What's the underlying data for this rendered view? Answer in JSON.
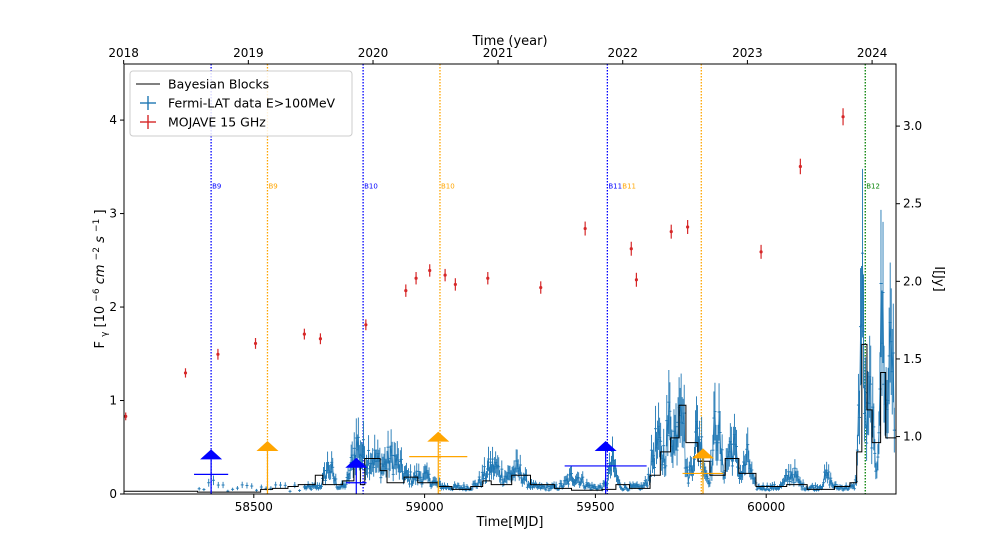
{
  "chart_data": {
    "type": "scatter",
    "title": "",
    "top_axis_label": "Time (year)",
    "xlabel": "Time[MJD]",
    "ylabel_left_parts": [
      "F",
      "γ",
      "[10",
      "−6",
      "cm",
      "−2",
      "s",
      "−1",
      "]"
    ],
    "ylabel_right": "I[Jy]",
    "xlim": [
      58120,
      60380
    ],
    "ylim_left": [
      0,
      4.6
    ],
    "ylim_right": [
      0.63,
      3.4
    ],
    "x_ticks": [
      58500,
      59000,
      59500,
      60000
    ],
    "x_tick_labels": [
      "58500",
      "59000",
      "59500",
      "60000"
    ],
    "y_left_ticks": [
      0,
      1,
      2,
      3,
      4
    ],
    "y_left_tick_labels": [
      "0",
      "1",
      "2",
      "3",
      "4"
    ],
    "y_right_ticks": [
      1.0,
      1.5,
      2.0,
      2.5,
      3.0
    ],
    "y_right_tick_labels": [
      "1.0",
      "1.5",
      "2.0",
      "2.5",
      "3.0"
    ],
    "year_ticks": [
      {
        "mjd": 58119,
        "label": "2018"
      },
      {
        "mjd": 58484,
        "label": "2019"
      },
      {
        "mjd": 58849,
        "label": "2020"
      },
      {
        "mjd": 59215,
        "label": "2021"
      },
      {
        "mjd": 59580,
        "label": "2022"
      },
      {
        "mjd": 59945,
        "label": "2023"
      },
      {
        "mjd": 60310,
        "label": "2024"
      }
    ],
    "legend": {
      "position": "top-left",
      "entries": [
        {
          "label": "Bayesian Blocks",
          "color": "#000000",
          "marker": "line"
        },
        {
          "label": "Fermi-LAT data E>100MeV",
          "color": "#1f77b4",
          "marker": "errorbar"
        },
        {
          "label": "MOJAVE 15 GHz",
          "color": "#d62728",
          "marker": "errorbar"
        }
      ]
    },
    "series": [
      {
        "name": "MOJAVE 15 GHz",
        "axis": "right",
        "color": "#d62728",
        "points": [
          {
            "x": 58125,
            "y": 1.13,
            "err": 0.025
          },
          {
            "x": 58300,
            "y": 1.41,
            "err": 0.03
          },
          {
            "x": 58395,
            "y": 1.53,
            "err": 0.035
          },
          {
            "x": 58505,
            "y": 1.6,
            "err": 0.035
          },
          {
            "x": 58648,
            "y": 1.66,
            "err": 0.035
          },
          {
            "x": 58695,
            "y": 1.63,
            "err": 0.035
          },
          {
            "x": 58828,
            "y": 1.72,
            "err": 0.035
          },
          {
            "x": 58945,
            "y": 1.94,
            "err": 0.04
          },
          {
            "x": 58975,
            "y": 2.02,
            "err": 0.04
          },
          {
            "x": 59015,
            "y": 2.07,
            "err": 0.04
          },
          {
            "x": 59060,
            "y": 2.04,
            "err": 0.04
          },
          {
            "x": 59090,
            "y": 1.98,
            "err": 0.04
          },
          {
            "x": 59185,
            "y": 2.02,
            "err": 0.04
          },
          {
            "x": 59340,
            "y": 1.96,
            "err": 0.04
          },
          {
            "x": 59470,
            "y": 2.34,
            "err": 0.045
          },
          {
            "x": 59605,
            "y": 2.21,
            "err": 0.045
          },
          {
            "x": 59620,
            "y": 2.01,
            "err": 0.045
          },
          {
            "x": 59722,
            "y": 2.32,
            "err": 0.045
          },
          {
            "x": 59770,
            "y": 2.35,
            "err": 0.045
          },
          {
            "x": 59985,
            "y": 2.19,
            "err": 0.045
          },
          {
            "x": 60100,
            "y": 2.74,
            "err": 0.05
          },
          {
            "x": 60225,
            "y": 3.06,
            "err": 0.055
          }
        ]
      },
      {
        "name": "Bayesian Blocks",
        "axis": "left",
        "color": "#000000",
        "steps": [
          [
            58120,
            0.03
          ],
          [
            58335,
            0.02
          ],
          [
            58520,
            0.05
          ],
          [
            58555,
            0.06
          ],
          [
            58600,
            0.08
          ],
          [
            58630,
            0.1
          ],
          [
            58680,
            0.2
          ],
          [
            58702,
            0.1
          ],
          [
            58760,
            0.14
          ],
          [
            58793,
            0.33
          ],
          [
            58812,
            0.1
          ],
          [
            58825,
            0.38
          ],
          [
            58870,
            0.25
          ],
          [
            58890,
            0.12
          ],
          [
            58940,
            0.18
          ],
          [
            58980,
            0.12
          ],
          [
            59040,
            0.08
          ],
          [
            59080,
            0.05
          ],
          [
            59135,
            0.08
          ],
          [
            59170,
            0.14
          ],
          [
            59195,
            0.1
          ],
          [
            59255,
            0.2
          ],
          [
            59310,
            0.1
          ],
          [
            59380,
            0.06
          ],
          [
            59430,
            0.04
          ],
          [
            59520,
            0.05
          ],
          [
            59560,
            0.1
          ],
          [
            59600,
            0.06
          ],
          [
            59660,
            0.2
          ],
          [
            59690,
            0.45
          ],
          [
            59720,
            0.6
          ],
          [
            59745,
            0.95
          ],
          [
            59765,
            0.55
          ],
          [
            59800,
            0.35
          ],
          [
            59835,
            0.2
          ],
          [
            59880,
            0.38
          ],
          [
            59920,
            0.22
          ],
          [
            59970,
            0.08
          ],
          [
            60060,
            0.1
          ],
          [
            60120,
            0.05
          ],
          [
            60200,
            0.08
          ],
          [
            60245,
            0.12
          ],
          [
            60265,
            0.45
          ],
          [
            60280,
            1.6
          ],
          [
            60295,
            0.9
          ],
          [
            60310,
            0.55
          ],
          [
            60335,
            1.3
          ],
          [
            60350,
            0.6
          ],
          [
            60380,
            0.6
          ]
        ]
      },
      {
        "name": "Fermi-LAT data E>100MeV",
        "axis": "left",
        "color": "#1f77b4",
        "background_level": 0.07,
        "flares": [
          {
            "x": 58380,
            "amp": 0.05,
            "width": 20
          },
          {
            "x": 58720,
            "amp": 0.22,
            "width": 12
          },
          {
            "x": 58800,
            "amp": 0.38,
            "width": 14
          },
          {
            "x": 58840,
            "amp": 0.32,
            "width": 22
          },
          {
            "x": 58905,
            "amp": 0.3,
            "width": 25
          },
          {
            "x": 58990,
            "amp": 0.12,
            "width": 30
          },
          {
            "x": 59200,
            "amp": 0.22,
            "width": 25
          },
          {
            "x": 59270,
            "amp": 0.18,
            "width": 20
          },
          {
            "x": 59440,
            "amp": 0.12,
            "width": 20
          },
          {
            "x": 59550,
            "amp": 0.25,
            "width": 10
          },
          {
            "x": 59680,
            "amp": 0.45,
            "width": 15
          },
          {
            "x": 59720,
            "amp": 0.7,
            "width": 12
          },
          {
            "x": 59750,
            "amp": 1.25,
            "width": 8
          },
          {
            "x": 59800,
            "amp": 0.55,
            "width": 15
          },
          {
            "x": 59855,
            "amp": 0.7,
            "width": 10
          },
          {
            "x": 59900,
            "amp": 0.45,
            "width": 15
          },
          {
            "x": 59945,
            "amp": 0.3,
            "width": 10
          },
          {
            "x": 60075,
            "amp": 0.15,
            "width": 15
          },
          {
            "x": 60178,
            "amp": 0.12,
            "width": 10
          },
          {
            "x": 60280,
            "amp": 1.9,
            "width": 7
          },
          {
            "x": 60305,
            "amp": 0.9,
            "width": 8
          },
          {
            "x": 60340,
            "amp": 1.8,
            "width": 8
          },
          {
            "x": 60365,
            "amp": 2.0,
            "width": 6
          }
        ]
      }
    ],
    "upper_limits": [
      {
        "x": 58375,
        "y": 0.21,
        "xerr": 50,
        "color": "#0000ff"
      },
      {
        "x": 58540,
        "y": 0.3,
        "xerr": 0,
        "color": "#ffa500"
      },
      {
        "x": 58800,
        "y": 0.12,
        "xerr": 30,
        "color": "#0000ff"
      },
      {
        "x": 59040,
        "y": 0.4,
        "xerr": 85,
        "color": "#ffa500"
      },
      {
        "x": 59530,
        "y": 0.3,
        "xerr": 120,
        "color": "#0000ff"
      },
      {
        "x": 59815,
        "y": 0.22,
        "xerr": 60,
        "color": "#ffa500"
      }
    ],
    "vertical_markers": [
      {
        "x": 58375,
        "label": "B9",
        "color": "#0000ff",
        "style": "dotted"
      },
      {
        "x": 58540,
        "label": "B9",
        "color": "#ffa500",
        "style": "dotted"
      },
      {
        "x": 58820,
        "label": "B10",
        "color": "#0000ff",
        "style": "dotted"
      },
      {
        "x": 59045,
        "label": "B10",
        "color": "#ffa500",
        "style": "dotted"
      },
      {
        "x": 59535,
        "label": "B11",
        "color": "#0000ff",
        "style": "dotted"
      },
      {
        "x": 59810,
        "label": "B11",
        "color": "#ffa500",
        "style": "dotted"
      },
      {
        "x": 60290,
        "label": "B12",
        "color": "#008000",
        "style": "dotted"
      }
    ],
    "marker_label_y": 3.3,
    "marker_label_offsets": [
      0,
      0,
      0,
      0,
      0,
      -80,
      0
    ]
  }
}
